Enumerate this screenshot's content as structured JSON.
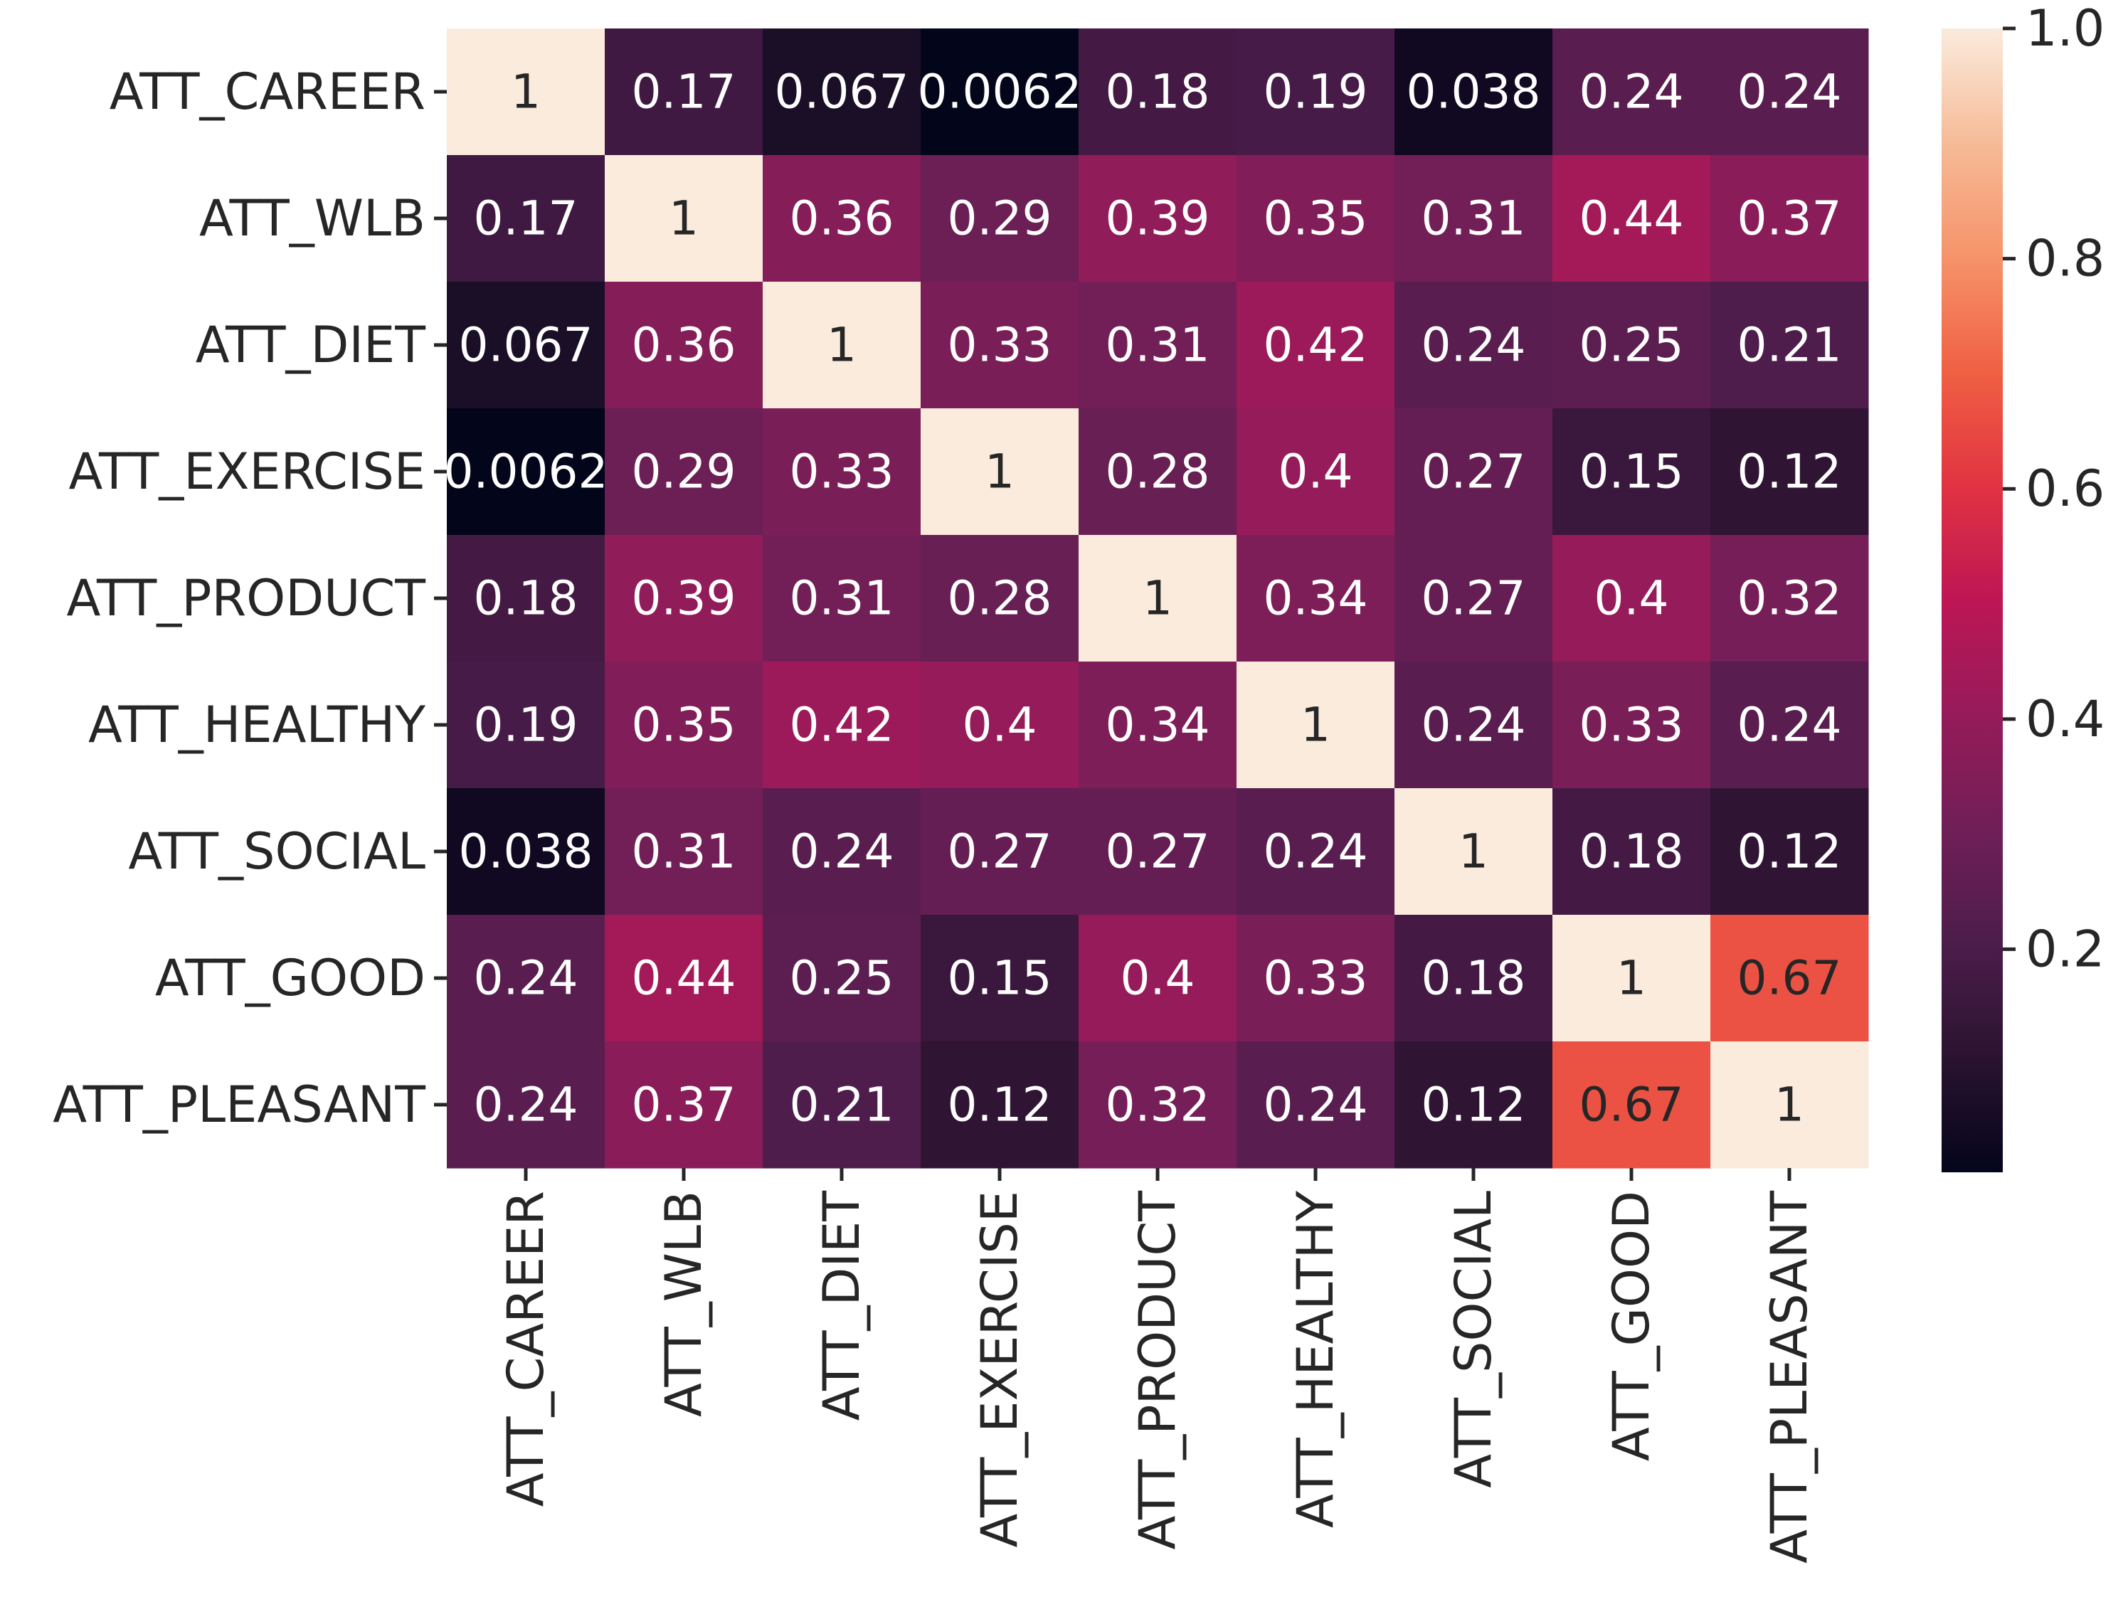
{
  "chart_data": {
    "type": "heatmap",
    "title": "",
    "xlabel": "",
    "ylabel": "",
    "row_labels": [
      "ATT_CAREER",
      "ATT_WLB",
      "ATT_DIET",
      "ATT_EXERCISE",
      "ATT_PRODUCT",
      "ATT_HEALTHY",
      "ATT_SOCIAL",
      "ATT_GOOD",
      "ATT_PLEASANT"
    ],
    "col_labels": [
      "ATT_CAREER",
      "ATT_WLB",
      "ATT_DIET",
      "ATT_EXERCISE",
      "ATT_PRODUCT",
      "ATT_HEALTHY",
      "ATT_SOCIAL",
      "ATT_GOOD",
      "ATT_PLEASANT"
    ],
    "values": [
      [
        1,
        0.17,
        0.067,
        0.0062,
        0.18,
        0.19,
        0.038,
        0.24,
        0.24
      ],
      [
        0.17,
        1,
        0.36,
        0.29,
        0.39,
        0.35,
        0.31,
        0.44,
        0.37
      ],
      [
        0.067,
        0.36,
        1,
        0.33,
        0.31,
        0.42,
        0.24,
        0.25,
        0.21
      ],
      [
        0.0062,
        0.29,
        0.33,
        1,
        0.28,
        0.4,
        0.27,
        0.15,
        0.12
      ],
      [
        0.18,
        0.39,
        0.31,
        0.28,
        1,
        0.34,
        0.27,
        0.4,
        0.32
      ],
      [
        0.19,
        0.35,
        0.42,
        0.4,
        0.34,
        1,
        0.24,
        0.33,
        0.24
      ],
      [
        0.038,
        0.31,
        0.24,
        0.27,
        0.27,
        0.24,
        1,
        0.18,
        0.12
      ],
      [
        0.24,
        0.44,
        0.25,
        0.15,
        0.4,
        0.33,
        0.18,
        1,
        0.67
      ],
      [
        0.24,
        0.37,
        0.21,
        0.12,
        0.32,
        0.24,
        0.12,
        0.67,
        1
      ]
    ],
    "annotations": [
      [
        "1",
        "0.17",
        "0.067",
        "0.0062",
        "0.18",
        "0.19",
        "0.038",
        "0.24",
        "0.24"
      ],
      [
        "0.17",
        "1",
        "0.36",
        "0.29",
        "0.39",
        "0.35",
        "0.31",
        "0.44",
        "0.37"
      ],
      [
        "0.067",
        "0.36",
        "1",
        "0.33",
        "0.31",
        "0.42",
        "0.24",
        "0.25",
        "0.21"
      ],
      [
        "0.0062",
        "0.29",
        "0.33",
        "1",
        "0.28",
        "0.4",
        "0.27",
        "0.15",
        "0.12"
      ],
      [
        "0.18",
        "0.39",
        "0.31",
        "0.28",
        "1",
        "0.34",
        "0.27",
        "0.4",
        "0.32"
      ],
      [
        "0.19",
        "0.35",
        "0.42",
        "0.4",
        "0.34",
        "1",
        "0.24",
        "0.33",
        "0.24"
      ],
      [
        "0.038",
        "0.31",
        "0.24",
        "0.27",
        "0.27",
        "0.24",
        "1",
        "0.18",
        "0.12"
      ],
      [
        "0.24",
        "0.44",
        "0.25",
        "0.15",
        "0.4",
        "0.33",
        "0.18",
        "1",
        "0.67"
      ],
      [
        "0.24",
        "0.37",
        "0.21",
        "0.12",
        "0.32",
        "0.24",
        "0.12",
        "0.67",
        "1"
      ]
    ],
    "colorbar": {
      "min": 0.0062,
      "max": 1.0,
      "ticks": [
        0.2,
        0.4,
        0.6,
        0.8,
        1.0
      ],
      "tick_labels": [
        "0.2",
        "0.4",
        "0.6",
        "0.8",
        "1.0"
      ]
    },
    "colormap": [
      "#03051a",
      "#2b1330",
      "#4c1d4b",
      "#701f57",
      "#961b5a",
      "#bd1655",
      "#e13342",
      "#f06043",
      "#f6936a",
      "#f6bb97",
      "#faebdd"
    ],
    "annotation_color_dark_bg": "#ffffff",
    "annotation_color_light_bg": "#262626"
  }
}
